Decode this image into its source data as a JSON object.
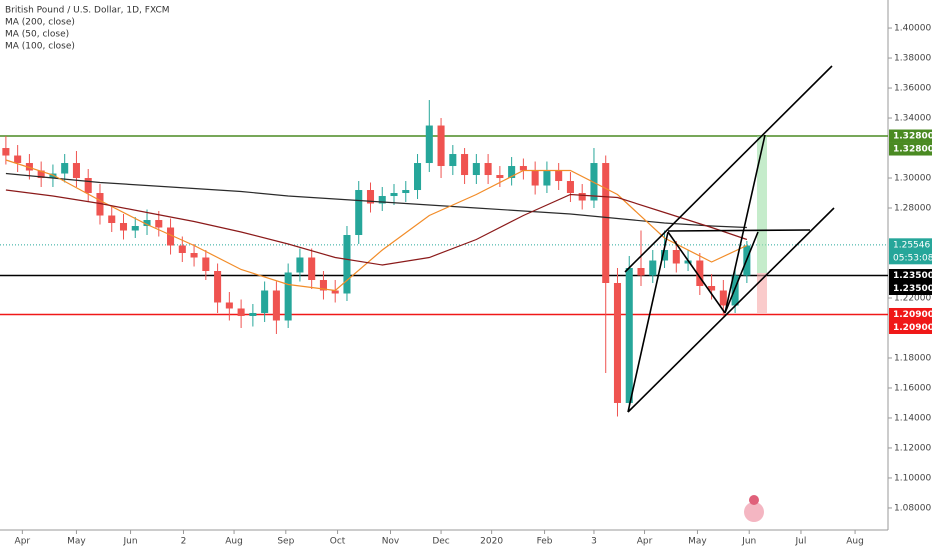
{
  "chart_data": {
    "type": "candlestick",
    "title": "British Pound / U.S. Dollar, 1D, FXCM",
    "xlim": [
      -0.5,
      75.0
    ],
    "xticks": [
      {
        "value": 1.4,
        "label": "Apr"
      },
      {
        "value": 6.0,
        "label": "May"
      },
      {
        "value": 10.6,
        "label": "Jun"
      },
      {
        "value": 15.1,
        "label": "2"
      },
      {
        "value": 19.4,
        "label": "Aug"
      },
      {
        "value": 23.8,
        "label": "Sep"
      },
      {
        "value": 28.2,
        "label": "Oct"
      },
      {
        "value": 32.7,
        "label": "Nov"
      },
      {
        "value": 37.0,
        "label": "Dec"
      },
      {
        "value": 41.3,
        "label": "2020"
      },
      {
        "value": 45.8,
        "label": "Feb"
      },
      {
        "value": 50.0,
        "label": "3"
      },
      {
        "value": 54.3,
        "label": "Apr"
      },
      {
        "value": 58.8,
        "label": "May"
      },
      {
        "value": 63.2,
        "label": "Jun"
      },
      {
        "value": 67.6,
        "label": "Jul"
      },
      {
        "value": 72.2,
        "label": "Aug"
      }
    ],
    "ylim": [
      1.0653,
      1.4187
    ],
    "yticks": [
      {
        "value": 1.4,
        "label": "1.40000"
      },
      {
        "value": 1.38,
        "label": "1.38000"
      },
      {
        "value": 1.36,
        "label": "1.36000"
      },
      {
        "value": 1.34,
        "label": "1.34000"
      },
      {
        "value": 1.3,
        "label": "1.30000"
      },
      {
        "value": 1.28,
        "label": "1.28000"
      },
      {
        "value": 1.22,
        "label": "1.22000"
      },
      {
        "value": 1.18,
        "label": "1.18000"
      },
      {
        "value": 1.16,
        "label": "1.16000"
      },
      {
        "value": 1.14,
        "label": "1.14000"
      },
      {
        "value": 1.12,
        "label": "1.12000"
      },
      {
        "value": 1.1,
        "label": "1.10000"
      },
      {
        "value": 1.08,
        "label": "1.08000"
      }
    ],
    "up_color": "#26a69a",
    "down_color": "#ef5350",
    "candles": {
      "x": [
        0,
        1,
        2,
        3,
        4,
        5,
        6,
        7,
        8,
        9,
        10,
        11,
        12,
        13,
        14,
        15,
        16,
        17,
        18,
        19,
        20,
        21,
        22,
        23,
        24,
        25,
        26,
        27,
        28,
        29,
        30,
        31,
        32,
        33,
        34,
        35,
        36,
        37,
        38,
        39,
        40,
        41,
        42,
        43,
        44,
        45,
        46,
        47,
        48,
        49,
        50,
        51,
        52,
        53,
        54,
        55,
        56,
        57,
        58,
        59,
        60,
        61,
        62,
        63
      ],
      "open": [
        1.32,
        1.315,
        1.31,
        1.305,
        1.3,
        1.303,
        1.31,
        1.3,
        1.29,
        1.275,
        1.27,
        1.265,
        1.268,
        1.272,
        1.267,
        1.255,
        1.25,
        1.247,
        1.238,
        1.217,
        1.213,
        1.208,
        1.21,
        1.225,
        1.205,
        1.237,
        1.247,
        1.232,
        1.225,
        1.223,
        1.262,
        1.292,
        1.283,
        1.288,
        1.29,
        1.292,
        1.31,
        1.335,
        1.308,
        1.316,
        1.302,
        1.31,
        1.302,
        1.3,
        1.308,
        1.305,
        1.295,
        1.305,
        1.298,
        1.29,
        1.285,
        1.31,
        1.23,
        1.15,
        1.24,
        1.235,
        1.245,
        1.252,
        1.243,
        1.245,
        1.228,
        1.225,
        1.215,
        1.235
      ],
      "high": [
        1.328,
        1.322,
        1.316,
        1.311,
        1.309,
        1.316,
        1.318,
        1.306,
        1.296,
        1.281,
        1.276,
        1.274,
        1.279,
        1.278,
        1.273,
        1.261,
        1.256,
        1.252,
        1.243,
        1.224,
        1.219,
        1.216,
        1.231,
        1.231,
        1.243,
        1.253,
        1.253,
        1.238,
        1.232,
        1.268,
        1.298,
        1.297,
        1.294,
        1.296,
        1.298,
        1.316,
        1.352,
        1.34,
        1.322,
        1.32,
        1.316,
        1.316,
        1.308,
        1.314,
        1.313,
        1.311,
        1.311,
        1.31,
        1.304,
        1.296,
        1.32,
        1.315,
        1.24,
        1.248,
        1.265,
        1.252,
        1.265,
        1.258,
        1.252,
        1.25,
        1.236,
        1.232,
        1.241,
        1.258
      ],
      "low": [
        1.309,
        1.304,
        1.299,
        1.294,
        1.294,
        1.297,
        1.294,
        1.284,
        1.269,
        1.264,
        1.259,
        1.26,
        1.262,
        1.261,
        1.249,
        1.244,
        1.241,
        1.232,
        1.21,
        1.205,
        1.2,
        1.201,
        1.204,
        1.196,
        1.2,
        1.231,
        1.226,
        1.219,
        1.217,
        1.218,
        1.256,
        1.277,
        1.278,
        1.282,
        1.284,
        1.286,
        1.304,
        1.3,
        1.302,
        1.296,
        1.296,
        1.296,
        1.294,
        1.295,
        1.299,
        1.289,
        1.29,
        1.292,
        1.284,
        1.279,
        1.28,
        1.17,
        1.141,
        1.145,
        1.228,
        1.23,
        1.24,
        1.237,
        1.238,
        1.222,
        1.219,
        1.208,
        1.21,
        1.23
      ],
      "close": [
        1.315,
        1.31,
        1.305,
        1.3,
        1.303,
        1.31,
        1.3,
        1.29,
        1.275,
        1.27,
        1.265,
        1.268,
        1.272,
        1.267,
        1.255,
        1.25,
        1.247,
        1.238,
        1.217,
        1.213,
        1.208,
        1.21,
        1.225,
        1.205,
        1.237,
        1.247,
        1.232,
        1.225,
        1.223,
        1.262,
        1.292,
        1.283,
        1.288,
        1.29,
        1.292,
        1.31,
        1.335,
        1.308,
        1.316,
        1.302,
        1.31,
        1.302,
        1.3,
        1.308,
        1.305,
        1.295,
        1.305,
        1.298,
        1.29,
        1.285,
        1.31,
        1.23,
        1.15,
        1.24,
        1.235,
        1.245,
        1.252,
        1.243,
        1.245,
        1.228,
        1.225,
        1.215,
        1.235,
        1.255
      ]
    },
    "series": [
      {
        "name": "MA (200, close)",
        "color": "#2b2b2b",
        "x": [
          0,
          4,
          8,
          12,
          16,
          20,
          24,
          28,
          32,
          36,
          40,
          44,
          48,
          52,
          56,
          60,
          63
        ],
        "values": [
          1.303,
          1.3,
          1.297,
          1.295,
          1.293,
          1.291,
          1.288,
          1.286,
          1.284,
          1.282,
          1.28,
          1.278,
          1.276,
          1.273,
          1.27,
          1.268,
          1.267
        ]
      },
      {
        "name": "MA (50, close)",
        "color": "#f28c28",
        "x": [
          0,
          4,
          8,
          12,
          16,
          20,
          24,
          28,
          32,
          36,
          40,
          44,
          48,
          52,
          56,
          60,
          63
        ],
        "values": [
          1.312,
          1.302,
          1.285,
          1.269,
          1.255,
          1.239,
          1.229,
          1.225,
          1.252,
          1.275,
          1.289,
          1.305,
          1.305,
          1.289,
          1.26,
          1.244,
          1.255
        ]
      },
      {
        "name": "MA (100, close)",
        "color": "#8b1a1a",
        "x": [
          0,
          4,
          8,
          12,
          16,
          20,
          24,
          28,
          32,
          36,
          40,
          44,
          48,
          52,
          56,
          60,
          63
        ],
        "values": [
          1.292,
          1.288,
          1.283,
          1.277,
          1.271,
          1.264,
          1.256,
          1.247,
          1.242,
          1.247,
          1.259,
          1.275,
          1.289,
          1.287,
          1.277,
          1.267,
          1.259
        ]
      }
    ],
    "levels": [
      {
        "value": 1.328,
        "color": "#4a8a22",
        "labels": [
          "1.32800",
          "1.32800"
        ]
      },
      {
        "value": 1.235,
        "color": "#000000",
        "labels": [
          "1.23500",
          "1.23500"
        ]
      },
      {
        "value": 1.209,
        "color": "#f01818",
        "labels": [
          "1.20900",
          "1.20900"
        ]
      }
    ],
    "last_price": {
      "value": 1.25546,
      "label": "1.25546",
      "countdown": "05:53:08",
      "color": "#26a69a"
    }
  }
}
